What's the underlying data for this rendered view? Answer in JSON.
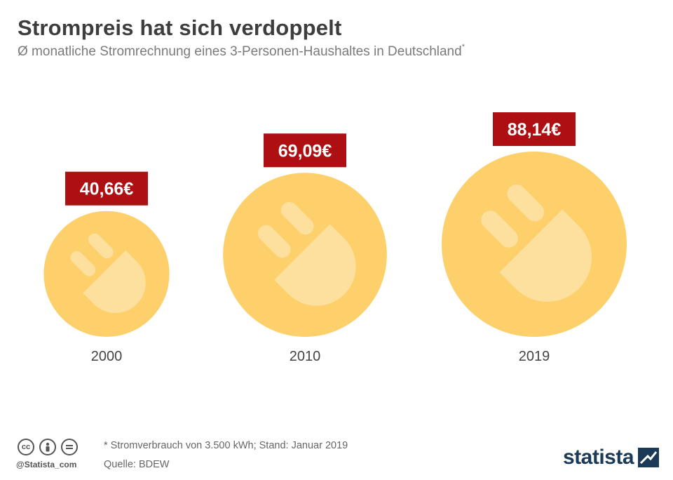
{
  "title": "Strompreis hat sich verdoppelt",
  "subtitle": "Ø monatliche Stromrechnung eines 3-Personen-Haushaltes in Deutschland",
  "subtitle_mark": "*",
  "chart_data": {
    "type": "bubble",
    "title": "Strompreis hat sich verdoppelt",
    "categories": [
      "2000",
      "2010",
      "2019"
    ],
    "values": [
      40.66,
      69.09,
      88.14
    ],
    "value_labels": [
      "40,66€",
      "69,09€",
      "88,14€"
    ],
    "unit": "€",
    "colors": {
      "bubble": "#fdd06c",
      "plug": "#fde09e",
      "label_bg": "#ad0f12",
      "label_text": "#ffffff",
      "category_text": "#444444"
    },
    "icon": "plug-icon"
  },
  "footer": {
    "note": "* Stromverbrauch von 3.500 kWh; Stand: Januar 2019",
    "source": "Quelle: BDEW",
    "handle": "@Statista_com",
    "license_icons": [
      "cc-icon",
      "by-icon",
      "nd-icon"
    ],
    "logo": "statista"
  }
}
